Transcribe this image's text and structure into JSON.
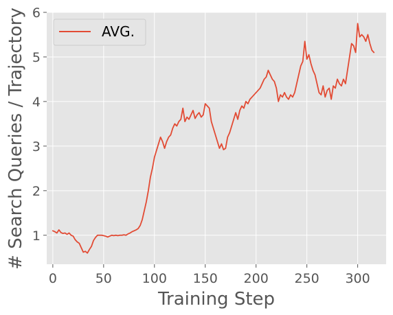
{
  "chart_data": {
    "type": "line",
    "title": "",
    "xlabel": "Training Step",
    "ylabel": "# Search Queries / Trajectory",
    "xlim": [
      -6,
      328
    ],
    "ylim": [
      0.35,
      6.0
    ],
    "xticks": [
      0,
      50,
      100,
      150,
      200,
      250,
      300
    ],
    "yticks": [
      1,
      2,
      3,
      4,
      5,
      6
    ],
    "grid": true,
    "legend_position": "top-left",
    "series": [
      {
        "name": "AVG.",
        "color": "#E24A33",
        "points": [
          [
            0,
            1.1
          ],
          [
            2,
            1.08
          ],
          [
            4,
            1.05
          ],
          [
            6,
            1.12
          ],
          [
            8,
            1.06
          ],
          [
            10,
            1.04
          ],
          [
            12,
            1.05
          ],
          [
            14,
            1.02
          ],
          [
            16,
            1.05
          ],
          [
            18,
            1.0
          ],
          [
            20,
            0.98
          ],
          [
            22,
            0.9
          ],
          [
            24,
            0.85
          ],
          [
            26,
            0.82
          ],
          [
            28,
            0.72
          ],
          [
            30,
            0.62
          ],
          [
            32,
            0.64
          ],
          [
            34,
            0.6
          ],
          [
            36,
            0.68
          ],
          [
            38,
            0.75
          ],
          [
            40,
            0.88
          ],
          [
            42,
            0.95
          ],
          [
            44,
            1.0
          ],
          [
            46,
            1.0
          ],
          [
            48,
            1.0
          ],
          [
            50,
            0.99
          ],
          [
            52,
            0.98
          ],
          [
            54,
            0.96
          ],
          [
            56,
            0.98
          ],
          [
            58,
            1.0
          ],
          [
            60,
            0.99
          ],
          [
            62,
            1.0
          ],
          [
            64,
            0.99
          ],
          [
            66,
            1.0
          ],
          [
            68,
            1.0
          ],
          [
            70,
            1.01
          ],
          [
            72,
            1.0
          ],
          [
            74,
            1.03
          ],
          [
            76,
            1.05
          ],
          [
            78,
            1.08
          ],
          [
            80,
            1.1
          ],
          [
            82,
            1.12
          ],
          [
            84,
            1.15
          ],
          [
            86,
            1.22
          ],
          [
            88,
            1.35
          ],
          [
            90,
            1.55
          ],
          [
            92,
            1.75
          ],
          [
            94,
            2.0
          ],
          [
            96,
            2.3
          ],
          [
            98,
            2.5
          ],
          [
            100,
            2.75
          ],
          [
            102,
            2.9
          ],
          [
            104,
            3.05
          ],
          [
            106,
            3.2
          ],
          [
            108,
            3.1
          ],
          [
            110,
            2.95
          ],
          [
            112,
            3.1
          ],
          [
            114,
            3.2
          ],
          [
            116,
            3.25
          ],
          [
            118,
            3.4
          ],
          [
            120,
            3.5
          ],
          [
            122,
            3.45
          ],
          [
            124,
            3.55
          ],
          [
            126,
            3.6
          ],
          [
            128,
            3.85
          ],
          [
            130,
            3.55
          ],
          [
            132,
            3.65
          ],
          [
            134,
            3.6
          ],
          [
            136,
            3.7
          ],
          [
            138,
            3.8
          ],
          [
            140,
            3.62
          ],
          [
            142,
            3.7
          ],
          [
            144,
            3.75
          ],
          [
            146,
            3.65
          ],
          [
            148,
            3.7
          ],
          [
            150,
            3.95
          ],
          [
            152,
            3.9
          ],
          [
            154,
            3.85
          ],
          [
            156,
            3.55
          ],
          [
            158,
            3.4
          ],
          [
            160,
            3.25
          ],
          [
            162,
            3.1
          ],
          [
            164,
            2.95
          ],
          [
            166,
            3.05
          ],
          [
            168,
            2.92
          ],
          [
            170,
            2.95
          ],
          [
            172,
            3.2
          ],
          [
            174,
            3.3
          ],
          [
            176,
            3.45
          ],
          [
            178,
            3.6
          ],
          [
            180,
            3.75
          ],
          [
            182,
            3.6
          ],
          [
            184,
            3.8
          ],
          [
            186,
            3.9
          ],
          [
            188,
            3.85
          ],
          [
            190,
            4.0
          ],
          [
            192,
            3.95
          ],
          [
            194,
            4.05
          ],
          [
            196,
            4.1
          ],
          [
            198,
            4.15
          ],
          [
            200,
            4.2
          ],
          [
            202,
            4.25
          ],
          [
            204,
            4.3
          ],
          [
            206,
            4.4
          ],
          [
            208,
            4.5
          ],
          [
            210,
            4.55
          ],
          [
            212,
            4.7
          ],
          [
            214,
            4.6
          ],
          [
            216,
            4.5
          ],
          [
            218,
            4.45
          ],
          [
            220,
            4.3
          ],
          [
            222,
            4.0
          ],
          [
            224,
            4.15
          ],
          [
            226,
            4.1
          ],
          [
            228,
            4.2
          ],
          [
            230,
            4.1
          ],
          [
            232,
            4.05
          ],
          [
            234,
            4.15
          ],
          [
            236,
            4.1
          ],
          [
            238,
            4.2
          ],
          [
            240,
            4.4
          ],
          [
            242,
            4.6
          ],
          [
            244,
            4.8
          ],
          [
            246,
            4.9
          ],
          [
            248,
            5.35
          ],
          [
            250,
            4.95
          ],
          [
            252,
            5.05
          ],
          [
            254,
            4.85
          ],
          [
            256,
            4.7
          ],
          [
            258,
            4.6
          ],
          [
            260,
            4.4
          ],
          [
            262,
            4.2
          ],
          [
            264,
            4.15
          ],
          [
            266,
            4.35
          ],
          [
            268,
            4.1
          ],
          [
            270,
            4.25
          ],
          [
            272,
            4.3
          ],
          [
            274,
            4.05
          ],
          [
            276,
            4.35
          ],
          [
            278,
            4.3
          ],
          [
            280,
            4.5
          ],
          [
            282,
            4.4
          ],
          [
            284,
            4.35
          ],
          [
            286,
            4.5
          ],
          [
            288,
            4.4
          ],
          [
            290,
            4.7
          ],
          [
            292,
            5.0
          ],
          [
            294,
            5.3
          ],
          [
            296,
            5.25
          ],
          [
            298,
            5.1
          ],
          [
            300,
            5.75
          ],
          [
            302,
            5.45
          ],
          [
            304,
            5.5
          ],
          [
            306,
            5.45
          ],
          [
            308,
            5.35
          ],
          [
            310,
            5.5
          ],
          [
            312,
            5.3
          ],
          [
            314,
            5.15
          ],
          [
            316,
            5.1
          ]
        ]
      }
    ]
  }
}
